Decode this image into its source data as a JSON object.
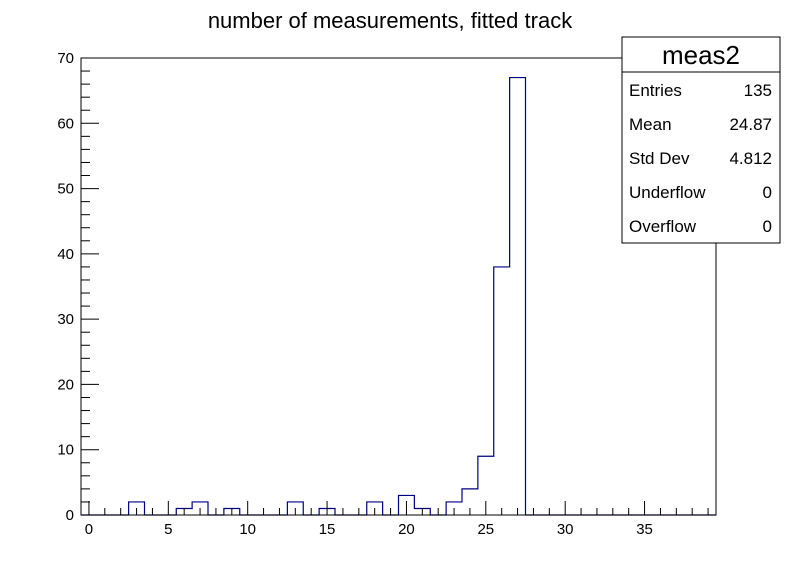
{
  "chart_data": {
    "type": "bar",
    "histogram": true,
    "title": "number of measurements, fitted track",
    "xlabel": "",
    "ylabel": "",
    "xlim": [
      -0.5,
      39.5
    ],
    "ylim": [
      0,
      70
    ],
    "bin_width": 1,
    "x_ticks": [
      0,
      5,
      10,
      15,
      20,
      25,
      30,
      35
    ],
    "y_ticks": [
      0,
      10,
      20,
      30,
      40,
      50,
      60,
      70
    ],
    "bins": [
      {
        "x": 0,
        "count": 0
      },
      {
        "x": 1,
        "count": 0
      },
      {
        "x": 2,
        "count": 0
      },
      {
        "x": 3,
        "count": 2
      },
      {
        "x": 4,
        "count": 0
      },
      {
        "x": 5,
        "count": 0
      },
      {
        "x": 6,
        "count": 1
      },
      {
        "x": 7,
        "count": 2
      },
      {
        "x": 8,
        "count": 0
      },
      {
        "x": 9,
        "count": 1
      },
      {
        "x": 10,
        "count": 0
      },
      {
        "x": 11,
        "count": 0
      },
      {
        "x": 12,
        "count": 0
      },
      {
        "x": 13,
        "count": 2
      },
      {
        "x": 14,
        "count": 0
      },
      {
        "x": 15,
        "count": 1
      },
      {
        "x": 16,
        "count": 0
      },
      {
        "x": 17,
        "count": 0
      },
      {
        "x": 18,
        "count": 2
      },
      {
        "x": 19,
        "count": 0
      },
      {
        "x": 20,
        "count": 3
      },
      {
        "x": 21,
        "count": 1
      },
      {
        "x": 22,
        "count": 0
      },
      {
        "x": 23,
        "count": 2
      },
      {
        "x": 24,
        "count": 4
      },
      {
        "x": 25,
        "count": 9
      },
      {
        "x": 26,
        "count": 38
      },
      {
        "x": 27,
        "count": 67
      },
      {
        "x": 28,
        "count": 0
      },
      {
        "x": 29,
        "count": 0
      },
      {
        "x": 30,
        "count": 0
      },
      {
        "x": 31,
        "count": 0
      },
      {
        "x": 32,
        "count": 0
      },
      {
        "x": 33,
        "count": 0
      },
      {
        "x": 34,
        "count": 0
      },
      {
        "x": 35,
        "count": 0
      },
      {
        "x": 36,
        "count": 0
      },
      {
        "x": 37,
        "count": 0
      },
      {
        "x": 38,
        "count": 0
      },
      {
        "x": 39,
        "count": 0
      }
    ],
    "line_color": "#000080",
    "grid": false,
    "legend_position": "top-right"
  },
  "stats_box": {
    "name": "meas2",
    "rows": [
      {
        "label": "Entries",
        "value": "135"
      },
      {
        "label": "Mean",
        "value": "24.87"
      },
      {
        "label": "Std Dev",
        "value": "4.812"
      },
      {
        "label": "Underflow",
        "value": "0"
      },
      {
        "label": "Overflow",
        "value": "0"
      }
    ]
  }
}
